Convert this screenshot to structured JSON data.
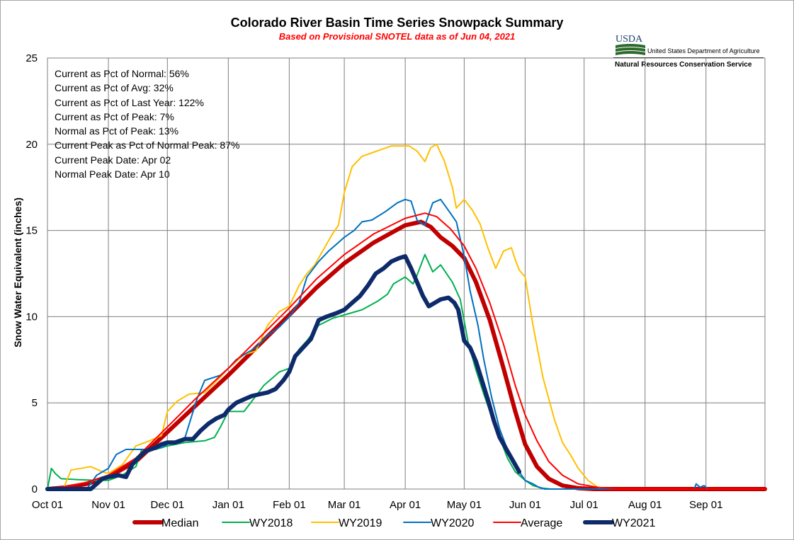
{
  "chart_data": {
    "type": "line",
    "title": "Colorado River Basin Time Series Snowpack Summary",
    "subtitle": "Based on Provisional SNOTEL data as of Jun 04, 2021",
    "ylabel": "Snow Water Equivalent (inches)",
    "xlabel": "",
    "ylim": [
      0,
      25
    ],
    "yticks": [
      "0",
      "5",
      "10",
      "15",
      "20",
      "25"
    ],
    "xlim_days": [
      0,
      365
    ],
    "xticks": [
      {
        "label": "Oct 01",
        "day": 0
      },
      {
        "label": "Nov 01",
        "day": 31
      },
      {
        "label": "Dec 01",
        "day": 61
      },
      {
        "label": "Jan 01",
        "day": 92
      },
      {
        "label": "Feb 01",
        "day": 123
      },
      {
        "label": "Mar 01",
        "day": 151
      },
      {
        "label": "Apr 01",
        "day": 182
      },
      {
        "label": "May 01",
        "day": 212
      },
      {
        "label": "Jun 01",
        "day": 243
      },
      {
        "label": "Jul 01",
        "day": 273
      },
      {
        "label": "Aug 01",
        "day": 304
      },
      {
        "label": "Sep 01",
        "day": 335
      }
    ],
    "grid": true,
    "legend_position": "bottom",
    "stats": [
      "Current as Pct of Normal: 56%",
      "Current as Pct of Avg: 32%",
      "Current as Pct of Last Year: 122%",
      "Current as Pct of Peak: 7%",
      "Normal as Pct of Peak: 13%",
      "Current Peak as Pct of Normal Peak: 87%",
      "Current Peak Date: Apr 02",
      "Normal Peak Date: Apr 10"
    ],
    "series": [
      {
        "name": "Median",
        "color": "#c00000",
        "width": 6,
        "points": [
          [
            0,
            0
          ],
          [
            10,
            0.1
          ],
          [
            20,
            0.3
          ],
          [
            31,
            0.7
          ],
          [
            45,
            1.6
          ],
          [
            61,
            3.3
          ],
          [
            75,
            4.8
          ],
          [
            92,
            6.6
          ],
          [
            108,
            8.4
          ],
          [
            123,
            10.1
          ],
          [
            137,
            11.7
          ],
          [
            151,
            13.1
          ],
          [
            166,
            14.3
          ],
          [
            182,
            15.3
          ],
          [
            190,
            15.5
          ],
          [
            195,
            15.2
          ],
          [
            200,
            14.6
          ],
          [
            206,
            14.1
          ],
          [
            212,
            13.4
          ],
          [
            218,
            12.0
          ],
          [
            225,
            9.8
          ],
          [
            232,
            7.0
          ],
          [
            238,
            4.5
          ],
          [
            243,
            2.6
          ],
          [
            249,
            1.3
          ],
          [
            255,
            0.6
          ],
          [
            262,
            0.2
          ],
          [
            270,
            0.05
          ],
          [
            278,
            0
          ],
          [
            365,
            0
          ]
        ]
      },
      {
        "name": "WY2018",
        "color": "#00b050",
        "width": 2,
        "points": [
          [
            0,
            0
          ],
          [
            2,
            1.2
          ],
          [
            4,
            0.9
          ],
          [
            7,
            0.6
          ],
          [
            15,
            0.55
          ],
          [
            25,
            0.5
          ],
          [
            31,
            0.5
          ],
          [
            38,
            0.8
          ],
          [
            45,
            1.3
          ],
          [
            48,
            2.3
          ],
          [
            55,
            2.3
          ],
          [
            61,
            2.5
          ],
          [
            70,
            2.7
          ],
          [
            80,
            2.8
          ],
          [
            85,
            3.0
          ],
          [
            88,
            3.6
          ],
          [
            92,
            4.5
          ],
          [
            100,
            4.5
          ],
          [
            106,
            5.4
          ],
          [
            110,
            6.0
          ],
          [
            115,
            6.5
          ],
          [
            118,
            6.8
          ],
          [
            123,
            7.0
          ],
          [
            128,
            8.1
          ],
          [
            132,
            8.6
          ],
          [
            138,
            9.5
          ],
          [
            145,
            9.9
          ],
          [
            151,
            10.1
          ],
          [
            160,
            10.4
          ],
          [
            168,
            10.9
          ],
          [
            173,
            11.3
          ],
          [
            176,
            11.9
          ],
          [
            182,
            12.3
          ],
          [
            186,
            11.9
          ],
          [
            188,
            12.4
          ],
          [
            192,
            13.6
          ],
          [
            196,
            12.6
          ],
          [
            200,
            13.0
          ],
          [
            206,
            12.0
          ],
          [
            210,
            11.0
          ],
          [
            214,
            8.5
          ],
          [
            218,
            6.9
          ],
          [
            222,
            5.5
          ],
          [
            226,
            4.2
          ],
          [
            230,
            3.0
          ],
          [
            234,
            1.8
          ],
          [
            238,
            1.0
          ],
          [
            243,
            0.5
          ],
          [
            247,
            0.2
          ],
          [
            252,
            0.05
          ],
          [
            256,
            0
          ],
          [
            365,
            0
          ]
        ]
      },
      {
        "name": "WY2019",
        "color": "#ffc000",
        "width": 2,
        "points": [
          [
            0,
            0
          ],
          [
            8,
            0
          ],
          [
            12,
            1.1
          ],
          [
            17,
            1.2
          ],
          [
            22,
            1.3
          ],
          [
            28,
            1.0
          ],
          [
            31,
            0.9
          ],
          [
            38,
            1.4
          ],
          [
            45,
            2.5
          ],
          [
            52,
            2.8
          ],
          [
            58,
            3.1
          ],
          [
            61,
            4.5
          ],
          [
            66,
            5.1
          ],
          [
            72,
            5.5
          ],
          [
            80,
            5.6
          ],
          [
            88,
            6.5
          ],
          [
            92,
            7.0
          ],
          [
            100,
            7.8
          ],
          [
            106,
            8.0
          ],
          [
            112,
            9.5
          ],
          [
            118,
            10.3
          ],
          [
            123,
            10.6
          ],
          [
            128,
            11.8
          ],
          [
            132,
            12.5
          ],
          [
            136,
            13.0
          ],
          [
            140,
            13.8
          ],
          [
            145,
            14.8
          ],
          [
            148,
            15.3
          ],
          [
            151,
            17.2
          ],
          [
            155,
            18.7
          ],
          [
            160,
            19.3
          ],
          [
            165,
            19.5
          ],
          [
            170,
            19.7
          ],
          [
            175,
            19.9
          ],
          [
            180,
            19.9
          ],
          [
            184,
            19.9
          ],
          [
            188,
            19.6
          ],
          [
            192,
            19.0
          ],
          [
            195,
            19.8
          ],
          [
            198,
            20.0
          ],
          [
            202,
            19.0
          ],
          [
            206,
            17.5
          ],
          [
            208,
            16.3
          ],
          [
            212,
            16.8
          ],
          [
            216,
            16.2
          ],
          [
            220,
            15.4
          ],
          [
            224,
            14.0
          ],
          [
            228,
            12.8
          ],
          [
            232,
            13.8
          ],
          [
            236,
            14.0
          ],
          [
            238,
            13.3
          ],
          [
            240,
            12.7
          ],
          [
            243,
            12.3
          ],
          [
            247,
            9.5
          ],
          [
            252,
            6.5
          ],
          [
            258,
            4.0
          ],
          [
            262,
            2.7
          ],
          [
            266,
            2.0
          ],
          [
            270,
            1.2
          ],
          [
            275,
            0.5
          ],
          [
            280,
            0.1
          ],
          [
            285,
            0
          ],
          [
            365,
            0
          ]
        ]
      },
      {
        "name": "WY2020",
        "color": "#0070c0",
        "width": 2,
        "points": [
          [
            0,
            0
          ],
          [
            20,
            0
          ],
          [
            25,
            0.8
          ],
          [
            31,
            1.2
          ],
          [
            35,
            2.0
          ],
          [
            40,
            2.3
          ],
          [
            50,
            2.3
          ],
          [
            58,
            2.4
          ],
          [
            61,
            2.6
          ],
          [
            70,
            3.0
          ],
          [
            76,
            5.2
          ],
          [
            80,
            6.3
          ],
          [
            88,
            6.6
          ],
          [
            92,
            7.0
          ],
          [
            96,
            7.5
          ],
          [
            100,
            7.8
          ],
          [
            106,
            8.2
          ],
          [
            112,
            8.9
          ],
          [
            118,
            9.4
          ],
          [
            123,
            10.0
          ],
          [
            128,
            10.8
          ],
          [
            132,
            12.3
          ],
          [
            138,
            13.2
          ],
          [
            143,
            13.8
          ],
          [
            147,
            14.2
          ],
          [
            151,
            14.6
          ],
          [
            156,
            15.0
          ],
          [
            160,
            15.5
          ],
          [
            165,
            15.6
          ],
          [
            172,
            16.1
          ],
          [
            178,
            16.6
          ],
          [
            182,
            16.8
          ],
          [
            185,
            16.7
          ],
          [
            188,
            15.6
          ],
          [
            192,
            15.3
          ],
          [
            196,
            16.6
          ],
          [
            200,
            16.8
          ],
          [
            205,
            16.0
          ],
          [
            208,
            15.5
          ],
          [
            212,
            13.5
          ],
          [
            215,
            11.5
          ],
          [
            219,
            9.5
          ],
          [
            222,
            7.5
          ],
          [
            226,
            5.3
          ],
          [
            230,
            3.5
          ],
          [
            234,
            2.3
          ],
          [
            237,
            1.5
          ],
          [
            240,
            1.0
          ],
          [
            243,
            0.5
          ],
          [
            247,
            0.3
          ],
          [
            250,
            0.1
          ],
          [
            253,
            0
          ],
          [
            329,
            0
          ],
          [
            330,
            0.3
          ],
          [
            332,
            0.1
          ],
          [
            334,
            0.2
          ],
          [
            336,
            0
          ],
          [
            365,
            0
          ]
        ]
      },
      {
        "name": "Average",
        "color": "#ff0000",
        "width": 2,
        "points": [
          [
            0,
            0
          ],
          [
            10,
            0.15
          ],
          [
            20,
            0.4
          ],
          [
            31,
            0.8
          ],
          [
            45,
            1.8
          ],
          [
            61,
            3.6
          ],
          [
            75,
            5.2
          ],
          [
            92,
            7.0
          ],
          [
            108,
            8.8
          ],
          [
            123,
            10.5
          ],
          [
            137,
            12.2
          ],
          [
            151,
            13.6
          ],
          [
            166,
            14.8
          ],
          [
            182,
            15.7
          ],
          [
            192,
            16.0
          ],
          [
            198,
            15.8
          ],
          [
            205,
            15.1
          ],
          [
            212,
            14.1
          ],
          [
            218,
            12.8
          ],
          [
            225,
            10.8
          ],
          [
            232,
            8.4
          ],
          [
            238,
            6.0
          ],
          [
            243,
            4.3
          ],
          [
            249,
            2.8
          ],
          [
            255,
            1.6
          ],
          [
            262,
            0.8
          ],
          [
            270,
            0.3
          ],
          [
            280,
            0.1
          ],
          [
            290,
            0
          ],
          [
            365,
            0
          ]
        ]
      },
      {
        "name": "WY2021",
        "color": "#0d2a6b",
        "width": 6,
        "points": [
          [
            0,
            0
          ],
          [
            22,
            0
          ],
          [
            25,
            0.3
          ],
          [
            28,
            0.6
          ],
          [
            31,
            0.7
          ],
          [
            36,
            0.8
          ],
          [
            40,
            0.7
          ],
          [
            43,
            1.4
          ],
          [
            46,
            1.8
          ],
          [
            50,
            2.2
          ],
          [
            55,
            2.4
          ],
          [
            58,
            2.6
          ],
          [
            61,
            2.7
          ],
          [
            65,
            2.7
          ],
          [
            70,
            2.9
          ],
          [
            74,
            2.9
          ],
          [
            78,
            3.4
          ],
          [
            82,
            3.8
          ],
          [
            86,
            4.1
          ],
          [
            90,
            4.3
          ],
          [
            92,
            4.6
          ],
          [
            96,
            5.0
          ],
          [
            100,
            5.2
          ],
          [
            104,
            5.4
          ],
          [
            108,
            5.5
          ],
          [
            112,
            5.6
          ],
          [
            116,
            5.8
          ],
          [
            120,
            6.3
          ],
          [
            123,
            6.8
          ],
          [
            126,
            7.7
          ],
          [
            130,
            8.2
          ],
          [
            134,
            8.7
          ],
          [
            138,
            9.8
          ],
          [
            142,
            10.0
          ],
          [
            147,
            10.2
          ],
          [
            151,
            10.4
          ],
          [
            155,
            10.8
          ],
          [
            159,
            11.2
          ],
          [
            163,
            11.8
          ],
          [
            167,
            12.5
          ],
          [
            171,
            12.8
          ],
          [
            175,
            13.2
          ],
          [
            179,
            13.4
          ],
          [
            182,
            13.5
          ],
          [
            185,
            12.8
          ],
          [
            188,
            12.0
          ],
          [
            191,
            11.2
          ],
          [
            194,
            10.6
          ],
          [
            197,
            10.8
          ],
          [
            200,
            11.0
          ],
          [
            204,
            11.1
          ],
          [
            207,
            10.8
          ],
          [
            209,
            10.4
          ],
          [
            212,
            8.6
          ],
          [
            215,
            8.2
          ],
          [
            218,
            7.4
          ],
          [
            221,
            6.3
          ],
          [
            224,
            5.2
          ],
          [
            227,
            4.0
          ],
          [
            230,
            3.0
          ],
          [
            234,
            2.2
          ],
          [
            237,
            1.6
          ],
          [
            240,
            1.0
          ]
        ]
      }
    ]
  }
}
